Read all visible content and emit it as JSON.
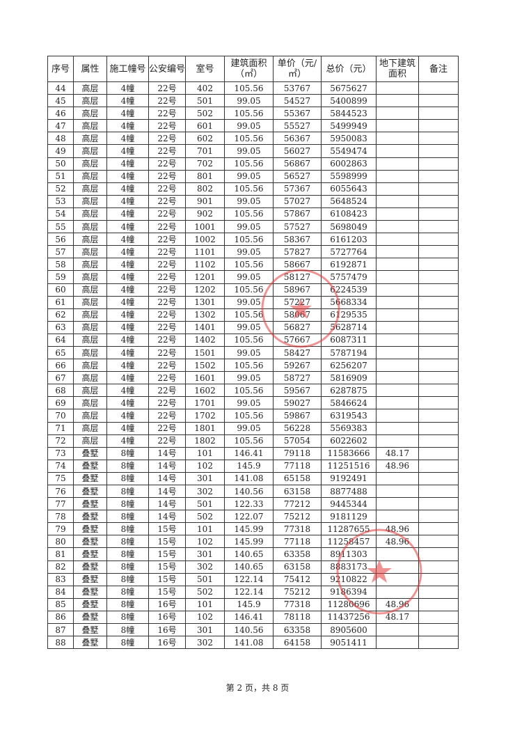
{
  "table": {
    "headers": [
      "序号",
      "属性",
      "施工幢号",
      "公安编号",
      "室号",
      "建筑面积（㎡）",
      "单价（元/㎡）",
      "总价（元）",
      "地下建筑面积",
      "备注"
    ],
    "rows": [
      [
        "44",
        "高层",
        "4幢",
        "22号",
        "402",
        "105.56",
        "53767",
        "5675627",
        "",
        ""
      ],
      [
        "45",
        "高层",
        "4幢",
        "22号",
        "501",
        "99.05",
        "54527",
        "5400899",
        "",
        ""
      ],
      [
        "46",
        "高层",
        "4幢",
        "22号",
        "502",
        "105.56",
        "55367",
        "5844523",
        "",
        ""
      ],
      [
        "47",
        "高层",
        "4幢",
        "22号",
        "601",
        "99.05",
        "55527",
        "5499949",
        "",
        ""
      ],
      [
        "48",
        "高层",
        "4幢",
        "22号",
        "602",
        "105.56",
        "56367",
        "5950083",
        "",
        ""
      ],
      [
        "49",
        "高层",
        "4幢",
        "22号",
        "701",
        "99.05",
        "56027",
        "5549474",
        "",
        ""
      ],
      [
        "50",
        "高层",
        "4幢",
        "22号",
        "702",
        "105.56",
        "56867",
        "6002863",
        "",
        ""
      ],
      [
        "51",
        "高层",
        "4幢",
        "22号",
        "801",
        "99.05",
        "56527",
        "5598999",
        "",
        ""
      ],
      [
        "52",
        "高层",
        "4幢",
        "22号",
        "802",
        "105.56",
        "57367",
        "6055643",
        "",
        ""
      ],
      [
        "53",
        "高层",
        "4幢",
        "22号",
        "901",
        "99.05",
        "57027",
        "5648524",
        "",
        ""
      ],
      [
        "54",
        "高层",
        "4幢",
        "22号",
        "902",
        "105.56",
        "57867",
        "6108423",
        "",
        ""
      ],
      [
        "55",
        "高层",
        "4幢",
        "22号",
        "1001",
        "99.05",
        "57527",
        "5698049",
        "",
        ""
      ],
      [
        "56",
        "高层",
        "4幢",
        "22号",
        "1002",
        "105.56",
        "58367",
        "6161203",
        "",
        ""
      ],
      [
        "57",
        "高层",
        "4幢",
        "22号",
        "1101",
        "99.05",
        "57827",
        "5727764",
        "",
        ""
      ],
      [
        "58",
        "高层",
        "4幢",
        "22号",
        "1102",
        "105.56",
        "58667",
        "6192871",
        "",
        ""
      ],
      [
        "59",
        "高层",
        "4幢",
        "22号",
        "1201",
        "99.05",
        "58127",
        "5757479",
        "",
        ""
      ],
      [
        "60",
        "高层",
        "4幢",
        "22号",
        "1202",
        "105.56",
        "58967",
        "6224539",
        "",
        ""
      ],
      [
        "61",
        "高层",
        "4幢",
        "22号",
        "1301",
        "99.05",
        "57227",
        "5668334",
        "",
        ""
      ],
      [
        "62",
        "高层",
        "4幢",
        "22号",
        "1302",
        "105.56",
        "58067",
        "6129535",
        "",
        ""
      ],
      [
        "63",
        "高层",
        "4幢",
        "22号",
        "1401",
        "99.05",
        "56827",
        "5628714",
        "",
        ""
      ],
      [
        "64",
        "高层",
        "4幢",
        "22号",
        "1402",
        "105.56",
        "57667",
        "6087311",
        "",
        ""
      ],
      [
        "65",
        "高层",
        "4幢",
        "22号",
        "1501",
        "99.05",
        "58427",
        "5787194",
        "",
        ""
      ],
      [
        "66",
        "高层",
        "4幢",
        "22号",
        "1502",
        "105.56",
        "59267",
        "6256207",
        "",
        ""
      ],
      [
        "67",
        "高层",
        "4幢",
        "22号",
        "1601",
        "99.05",
        "58727",
        "5816909",
        "",
        ""
      ],
      [
        "68",
        "高层",
        "4幢",
        "22号",
        "1602",
        "105.56",
        "59567",
        "6287875",
        "",
        ""
      ],
      [
        "69",
        "高层",
        "4幢",
        "22号",
        "1701",
        "99.05",
        "59027",
        "5846624",
        "",
        ""
      ],
      [
        "70",
        "高层",
        "4幢",
        "22号",
        "1702",
        "105.56",
        "59867",
        "6319543",
        "",
        ""
      ],
      [
        "71",
        "高层",
        "4幢",
        "22号",
        "1801",
        "99.05",
        "56228",
        "5569383",
        "",
        ""
      ],
      [
        "72",
        "高层",
        "4幢",
        "22号",
        "1802",
        "105.56",
        "57054",
        "6022602",
        "",
        ""
      ],
      [
        "73",
        "叠墅",
        "8幢",
        "14号",
        "101",
        "146.41",
        "79118",
        "11583666",
        "48.17",
        ""
      ],
      [
        "74",
        "叠墅",
        "8幢",
        "14号",
        "102",
        "145.9",
        "77118",
        "11251516",
        "48.96",
        ""
      ],
      [
        "75",
        "叠墅",
        "8幢",
        "14号",
        "301",
        "141.08",
        "65158",
        "9192491",
        "",
        ""
      ],
      [
        "76",
        "叠墅",
        "8幢",
        "14号",
        "302",
        "140.56",
        "63158",
        "8877488",
        "",
        ""
      ],
      [
        "77",
        "叠墅",
        "8幢",
        "14号",
        "501",
        "122.33",
        "77212",
        "9445344",
        "",
        ""
      ],
      [
        "78",
        "叠墅",
        "8幢",
        "14号",
        "502",
        "122.07",
        "75212",
        "9181129",
        "",
        ""
      ],
      [
        "79",
        "叠墅",
        "8幢",
        "15号",
        "101",
        "145.99",
        "77318",
        "11287655",
        "48.96",
        ""
      ],
      [
        "80",
        "叠墅",
        "8幢",
        "15号",
        "102",
        "145.99",
        "77118",
        "11258457",
        "48.96",
        ""
      ],
      [
        "81",
        "叠墅",
        "8幢",
        "15号",
        "301",
        "140.65",
        "63358",
        "8911303",
        "",
        ""
      ],
      [
        "82",
        "叠墅",
        "8幢",
        "15号",
        "302",
        "140.65",
        "63158",
        "8883173",
        "",
        ""
      ],
      [
        "83",
        "叠墅",
        "8幢",
        "15号",
        "501",
        "122.14",
        "75412",
        "9210822",
        "",
        ""
      ],
      [
        "84",
        "叠墅",
        "8幢",
        "15号",
        "502",
        "122.14",
        "75212",
        "9186394",
        "",
        ""
      ],
      [
        "85",
        "叠墅",
        "8幢",
        "16号",
        "101",
        "145.9",
        "77318",
        "11280696",
        "48.96",
        ""
      ],
      [
        "86",
        "叠墅",
        "8幢",
        "16号",
        "102",
        "146.41",
        "78118",
        "11437256",
        "48.17",
        ""
      ],
      [
        "87",
        "叠墅",
        "8幢",
        "16号",
        "301",
        "140.56",
        "63358",
        "8905600",
        "",
        ""
      ],
      [
        "88",
        "叠墅",
        "8幢",
        "16号",
        "302",
        "141.08",
        "64158",
        "9051411",
        "",
        ""
      ]
    ]
  },
  "footer": {
    "page_text": "第 2 页，共 8 页"
  },
  "colors": {
    "stamp": "#e23a3a",
    "ink": "#222222"
  }
}
